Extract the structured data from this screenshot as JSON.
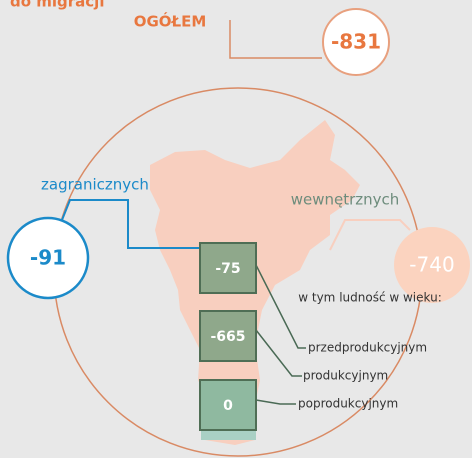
{
  "header": {
    "title": "do migracji"
  },
  "total": {
    "label": "OGÓŁEM",
    "value": -831
  },
  "foreign": {
    "label": "zagranicznych",
    "value": -91
  },
  "domestic": {
    "label": "wewnętrznych",
    "value": -740
  },
  "age": {
    "heading": "w tym ludność w wieku:",
    "groups": [
      {
        "label": "przedprodukcyjnym",
        "value": -75
      },
      {
        "label": "produkcyjnym",
        "value": -665
      },
      {
        "label": "poprodukcyjnym",
        "value": 0
      }
    ]
  }
}
